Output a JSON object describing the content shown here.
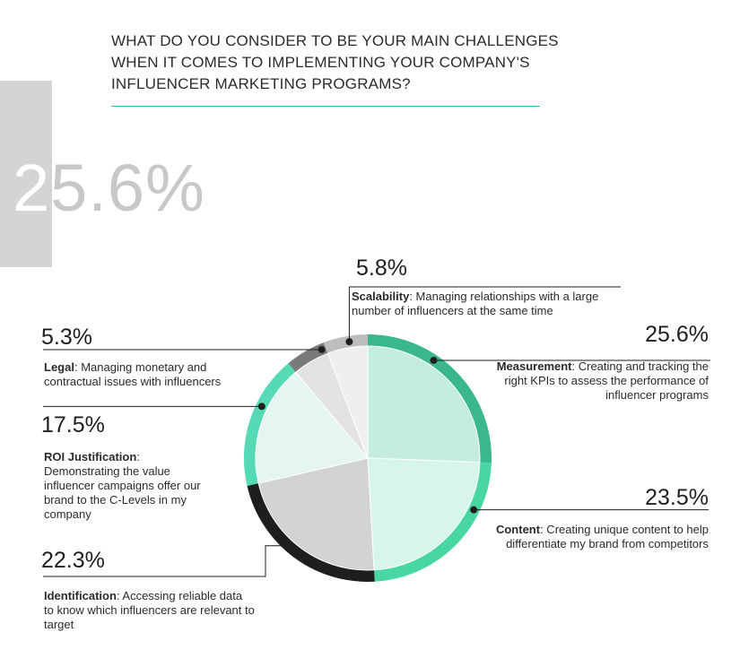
{
  "title_lines": [
    "WHAT DO YOU CONSIDER TO BE YOUR MAIN CHALLENGES",
    "WHEN IT COMES TO IMPLEMENTING YOUR COMPANY'S",
    "INFLUENCER MARKETING PROGRAMS?"
  ],
  "highlight": {
    "first_char": "2",
    "rest": "5.6%"
  },
  "colors": {
    "rule": "#3bbf95",
    "highlight_block": "#d4d4d4"
  },
  "chart_data": {
    "type": "pie",
    "title": "WHAT DO YOU CONSIDER TO BE YOUR MAIN CHALLENGES WHEN IT COMES TO IMPLEMENTING YOUR COMPANY'S INFLUENCER MARKETING PROGRAMS?",
    "legend": "none",
    "slices": [
      {
        "key": "measurement",
        "label": "Measurement",
        "desc": ": Creating and tracking the right KPIs to assess the performance of influencer programs",
        "value": 25.6,
        "pct_label": "25.6%",
        "fill": "#c4ede0",
        "ring": "#3bb78d"
      },
      {
        "key": "content",
        "label": "Content",
        "desc": ": Creating unique content to help differentiate my brand from competitors",
        "value": 23.5,
        "pct_label": "23.5%",
        "fill": "#d6f6ec",
        "ring": "#48d6a3"
      },
      {
        "key": "identification",
        "label": "Identification",
        "desc": ": Accessing reliable data to know which influencers are relevant to target",
        "value": 22.3,
        "pct_label": "22.3%",
        "fill": "#d3d3d3",
        "ring": "#1e1e1e"
      },
      {
        "key": "roi",
        "label": "ROI Justification",
        "desc": ": Demonstrating the value influencer campaigns offer our brand to the C-Levels in my company",
        "value": 17.5,
        "pct_label": "17.5%",
        "fill": "#e4f5f2",
        "ring": "#56d9b5"
      },
      {
        "key": "legal",
        "label": "Legal",
        "desc": ": Managing monetary and contractual issues with influencers",
        "value": 5.3,
        "pct_label": "5.3%",
        "fill": "#e3e3e3",
        "ring": "#7a7a7a"
      },
      {
        "key": "scalability",
        "label": "Scalability",
        "desc": ": Managing relationships with a large number of influencers at the same time",
        "value": 5.8,
        "pct_label": "5.8%",
        "fill": "#efefef",
        "ring": "#bdbdbd"
      }
    ]
  }
}
